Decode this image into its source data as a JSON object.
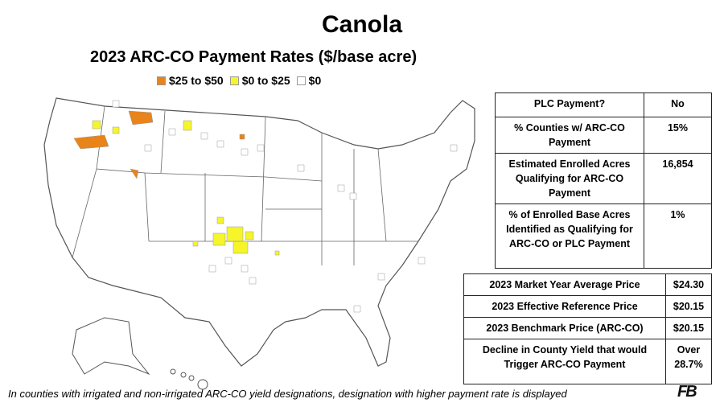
{
  "header": {
    "title": "Canola",
    "subtitle": "2023 ARC-CO Payment Rates ($/base acre)"
  },
  "legend": [
    {
      "label": "$25 to $50",
      "color": "#e8841a"
    },
    {
      "label": "$0 to $25",
      "color": "#f5f52a"
    },
    {
      "label": "$0",
      "color": "#ffffff"
    }
  ],
  "table_1": {
    "rows": [
      [
        "PLC Payment?",
        "No"
      ],
      [
        "% Counties w/ ARC-CO Payment",
        "15%"
      ],
      [
        "Estimated Enrolled Acres Qualifying for ARC-CO Payment",
        "16,854"
      ],
      [
        "% of Enrolled Base Acres Identified as Qualifying for ARC-CO or PLC Payment",
        "1%"
      ]
    ]
  },
  "table_2": {
    "rows": [
      [
        "2023 Market Year Average Price",
        "$24.30"
      ],
      [
        "2023 Effective Reference Price",
        "$20.15"
      ],
      [
        "2023 Benchmark Price (ARC-CO)",
        "$20.15"
      ],
      [
        "Decline in County Yield that would Trigger ARC-CO Payment",
        "Over 28.7%"
      ]
    ]
  },
  "footnote": "In counties with irrigated and non-irrigated ARC-CO yield designations, designation with higher payment rate is displayed",
  "logo": "FB"
}
